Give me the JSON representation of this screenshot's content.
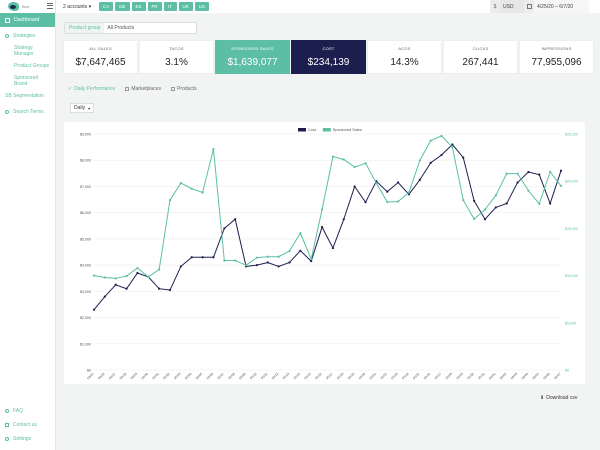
{
  "app": {
    "logo_text": "flow"
  },
  "sidebar": {
    "dashboard": "Dashboard",
    "strategies": "Strategies",
    "sub": [
      "Strategy Manager",
      "Product Groups",
      "Sponsored Brand"
    ],
    "sb_segmentation": "SB Segmentation",
    "search_terms": "Search Terms",
    "faq": "FAQ",
    "contact": "Contact us",
    "settings": "Settings"
  },
  "topbar": {
    "accounts": "2 accounts",
    "countries": [
      "CA",
      "DE",
      "ES",
      "FR",
      "IT",
      "UK",
      "US"
    ],
    "currency_sign": "$",
    "currency": "USD",
    "date_range": "4/25/20 – 6/7/20"
  },
  "product_group": {
    "label": "Product group",
    "value": "All Products"
  },
  "metrics": [
    {
      "label": "ALL SALES",
      "value": "$7,647,465"
    },
    {
      "label": "TACOS",
      "value": "3.1%"
    },
    {
      "label": "SPONSORED SALES",
      "value": "$1,639,077"
    },
    {
      "label": "COST",
      "value": "$234,139"
    },
    {
      "label": "ACOS",
      "value": "14.3%"
    },
    {
      "label": "CLICKS",
      "value": "267,441"
    },
    {
      "label": "IMPRESSIONS",
      "value": "77,955,096"
    }
  ],
  "tabs": [
    "Daily Performance",
    "Marketplaces",
    "Products"
  ],
  "granularity": "Daily",
  "download": "Download csv",
  "colors": {
    "accent": "#5cbfa5",
    "navy": "#1c1f4e"
  },
  "chart_data": {
    "type": "line",
    "x": [
      "04/25",
      "04/26",
      "04/27",
      "04/28",
      "04/29",
      "04/30",
      "05/01",
      "05/02",
      "05/03",
      "05/04",
      "05/05",
      "05/06",
      "05/07",
      "05/08",
      "05/09",
      "05/10",
      "05/11",
      "05/12",
      "05/13",
      "05/14",
      "05/15",
      "05/16",
      "05/17",
      "05/18",
      "05/19",
      "05/20",
      "05/21",
      "05/22",
      "05/23",
      "05/24",
      "05/25",
      "05/26",
      "05/27",
      "05/28",
      "05/29",
      "05/30",
      "05/31",
      "06/01",
      "06/02",
      "06/03",
      "06/04",
      "06/05",
      "06/06",
      "06/07"
    ],
    "series": [
      {
        "name": "Cost",
        "axis": "left",
        "color": "#1c1f4e",
        "values": [
          2300,
          2800,
          3250,
          3100,
          3700,
          3550,
          3100,
          3050,
          3950,
          4300,
          4300,
          4300,
          5400,
          5750,
          3950,
          4000,
          4100,
          3950,
          4100,
          4550,
          4150,
          5450,
          4650,
          5750,
          7000,
          6400,
          7200,
          6800,
          7150,
          6700,
          7250,
          7900,
          8200,
          8600,
          8100,
          6450,
          5750,
          6200,
          6350,
          7150,
          7550,
          7450,
          6350,
          7600
        ]
      },
      {
        "name": "Sponsored Sales",
        "axis": "right",
        "color": "#5cbfa5",
        "values": [
          10000,
          9800,
          9700,
          9950,
          10800,
          9850,
          10650,
          18000,
          19800,
          19200,
          18800,
          23400,
          11600,
          11600,
          11100,
          11900,
          12000,
          12000,
          12600,
          14500,
          11750,
          17000,
          22600,
          22300,
          21500,
          21900,
          19800,
          17800,
          17850,
          18800,
          22200,
          24300,
          24800,
          23600,
          18000,
          16000,
          17000,
          18500,
          20800,
          20800,
          19000,
          17600,
          21000,
          19500
        ]
      }
    ],
    "y_left": {
      "min": 0,
      "max": 9000,
      "ticks": [
        "$0",
        "$1,000",
        "$2,000",
        "$3,000",
        "$4,000",
        "$5,000",
        "$6,000",
        "$7,000",
        "$8,000",
        "$9,000"
      ]
    },
    "y_right": {
      "min": 0,
      "max": 25000,
      "ticks": [
        "$0",
        "$5,000",
        "$10,000",
        "$15,000",
        "$20,000",
        "$25,000"
      ]
    },
    "grid": true,
    "legend_position": "top-center"
  }
}
